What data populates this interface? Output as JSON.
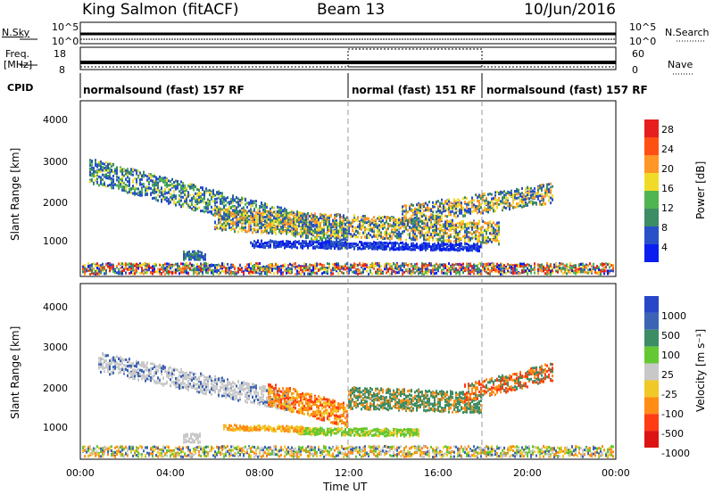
{
  "header": {
    "station": "King Salmon (fitACF)",
    "beam": "Beam 13",
    "date": "10/Jun/2016"
  },
  "top_panels": {
    "nsky_label": "N.Sky",
    "nsearch_label": "N.Search",
    "left_ticks_sky": [
      "10^5",
      "10^0"
    ],
    "right_ticks_sky": [
      "10^5",
      "10^0"
    ],
    "freq_label_1": "Freq.",
    "freq_label_2": "[MHz]",
    "nave_label": "Nave",
    "freq_ticks": [
      "18",
      "8"
    ],
    "nave_ticks": [
      "60",
      "0"
    ],
    "cpid_label": "CPID",
    "modes": [
      {
        "label": "normalsound (fast) 157 RF",
        "start_hour": 0
      },
      {
        "label": "normal (fast) 151 RF",
        "start_hour": 12
      },
      {
        "label": "normalsound (fast) 157 RF",
        "start_hour": 18
      }
    ]
  },
  "chart_data": [
    {
      "type": "heatmap",
      "name": "power-panel",
      "ylabel": "Slant Range [km]",
      "ylim": [
        200,
        4600
      ],
      "xlim_hours": [
        0,
        24
      ],
      "y_ticks": [
        1000,
        2000,
        3000,
        4000
      ],
      "colorbar": {
        "label": "Power [dB]",
        "ticks": [
          "4",
          "8",
          "12",
          "16",
          "20",
          "24",
          "28"
        ],
        "colors": [
          "#0a1ef0",
          "#2850c8",
          "#3c8c64",
          "#50b450",
          "#f0dc28",
          "#ff9628",
          "#ff5014",
          "#e61e1e"
        ]
      }
    },
    {
      "type": "heatmap",
      "name": "velocity-panel",
      "ylabel": "Slant Range [km]",
      "ylim": [
        200,
        4600
      ],
      "xlim_hours": [
        0,
        24
      ],
      "y_ticks": [
        1000,
        2000,
        3000,
        4000
      ],
      "colorbar": {
        "label": "Velocity [m s⁻¹]",
        "ticks": [
          "1000",
          "500",
          "100",
          "25",
          "-25",
          "-100",
          "-500",
          "-1000"
        ],
        "colors": [
          "#2846c8",
          "#3c64b4",
          "#3c8c64",
          "#64c832",
          "#c8c8c8",
          "#f0c828",
          "#ff8c14",
          "#ff3c14",
          "#dc1414"
        ]
      }
    }
  ],
  "x_axis": {
    "ticks": [
      "00:00",
      "04:00",
      "08:00",
      "12:00",
      "16:00",
      "20:00",
      "00:00"
    ],
    "label": "Time UT"
  }
}
